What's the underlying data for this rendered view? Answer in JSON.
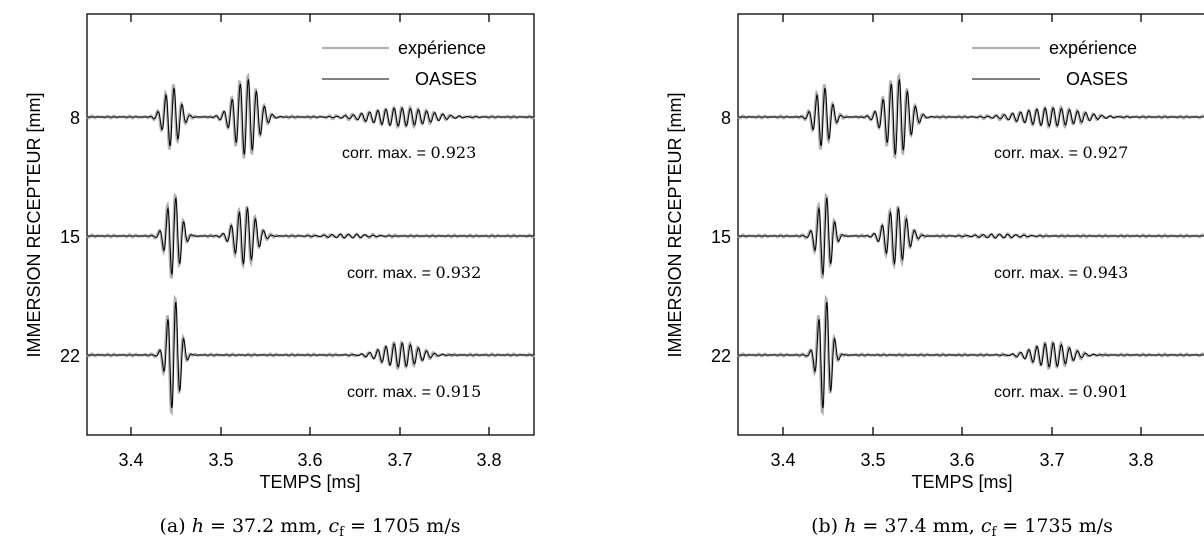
{
  "chart_data": [
    {
      "type": "line",
      "panel": "a",
      "caption": {
        "prefix": "(a) ",
        "h_var": "h",
        "h_value": " = 37.2 mm, ",
        "c_var": "c",
        "c_sub": "f",
        "c_value": " = 1705 m/s"
      },
      "xlabel": "TEMPS [ms]",
      "ylabel": "IMMERSION RECEPTEUR [mm]",
      "xlim": [
        3.35,
        3.85
      ],
      "xticks": [
        "3.4",
        "3.5",
        "3.6",
        "3.7",
        "3.8"
      ],
      "yticks": [
        "8",
        "15",
        "22"
      ],
      "legend": {
        "position": "top-right",
        "entries": [
          "expérience",
          "OASES"
        ]
      },
      "series": [
        {
          "name": "expérience",
          "color": "#b0b0b0"
        },
        {
          "name": "OASES",
          "color": "#000000"
        }
      ],
      "traces": [
        {
          "depth_mm": 8,
          "corr_label": "corr. max. = ",
          "corr_value": "0.923"
        },
        {
          "depth_mm": 15,
          "corr_label": "corr. max. = ",
          "corr_value": "0.932"
        },
        {
          "depth_mm": 22,
          "corr_label": "corr. max. = ",
          "corr_value": "0.915"
        }
      ]
    },
    {
      "type": "line",
      "panel": "b",
      "caption": {
        "prefix": "(b) ",
        "h_var": "h",
        "h_value": " = 37.4 mm, ",
        "c_var": "c",
        "c_sub": "f",
        "c_value": " = 1735 m/s"
      },
      "xlabel": "TEMPS [ms]",
      "ylabel": "IMMERSION RECEPTEUR [mm]",
      "xlim": [
        3.35,
        3.85
      ],
      "xticks": [
        "3.4",
        "3.5",
        "3.6",
        "3.7",
        "3.8"
      ],
      "yticks": [
        "8",
        "15",
        "22"
      ],
      "legend": {
        "position": "top-right",
        "entries": [
          "expérience",
          "OASES"
        ]
      },
      "series": [
        {
          "name": "expérience",
          "color": "#b0b0b0"
        },
        {
          "name": "OASES",
          "color": "#000000"
        }
      ],
      "traces": [
        {
          "depth_mm": 8,
          "corr_label": "corr. max. = ",
          "corr_value": "0.927"
        },
        {
          "depth_mm": 15,
          "corr_label": "corr. max. = ",
          "corr_value": "0.943"
        },
        {
          "depth_mm": 22,
          "corr_label": "corr. max. = ",
          "corr_value": "0.901"
        }
      ]
    }
  ]
}
